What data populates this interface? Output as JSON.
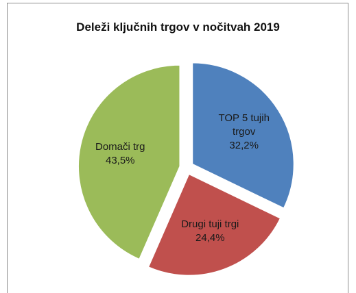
{
  "chart_data": {
    "type": "pie",
    "title": "Deleži ključnih trgov v nočitvah 2019",
    "categories": [
      "TOP 5 tujih trgov",
      "Drugi tuji trgi",
      "Domači trg"
    ],
    "values": [
      32.2,
      24.4,
      43.5
    ],
    "value_labels": [
      "32,2%",
      "24,4%",
      "43,5%"
    ],
    "colors": [
      "#4f81bd",
      "#c0504d",
      "#9bbb59"
    ]
  }
}
